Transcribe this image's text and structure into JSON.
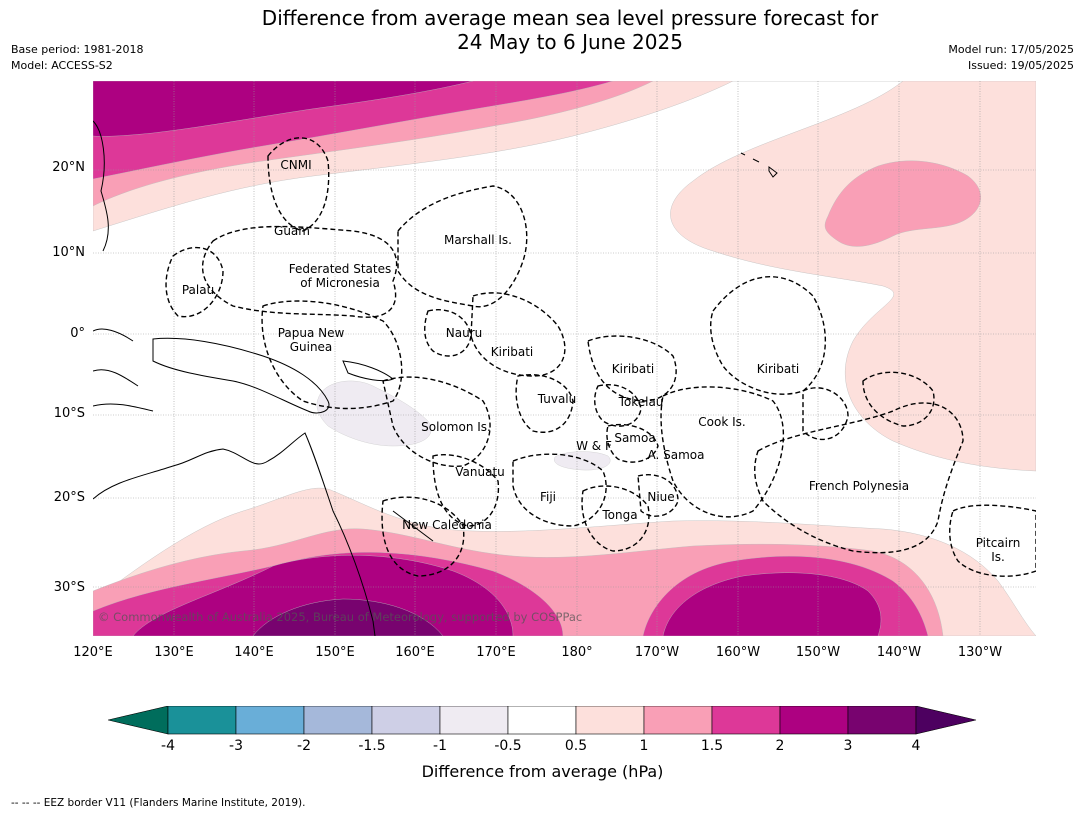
{
  "title_line1": "Difference from average mean sea level pressure forecast for",
  "title_line2": "24 May to 6 June 2025",
  "base_period": "Base period: 1981-2018",
  "model": "Model: ACCESS-S2",
  "model_run": "Model run: 17/05/2025",
  "issued": "Issued: 19/05/2025",
  "lat_labels": [
    "20°N",
    "10°N",
    "0°",
    "10°S",
    "20°S",
    "30°S"
  ],
  "lon_labels": [
    "120°E",
    "130°E",
    "140°E",
    "150°E",
    "160°E",
    "170°E",
    "180°",
    "170°W",
    "160°W",
    "150°W",
    "140°W",
    "130°W"
  ],
  "places": {
    "cnmi": "CNMI",
    "guam": "Guam",
    "marshall": "Marshall Is.",
    "fsm_1": "Federated States",
    "fsm_2": "of Micronesia",
    "palau": "Palau",
    "png_1": "Papua New",
    "png_2": "Guinea",
    "nauru": "Nauru",
    "kiribati_w": "Kiribati",
    "kiribati_c": "Kiribati",
    "kiribati_e": "Kiribati",
    "tuvalu": "Tuvalu",
    "tokelau": "Tokelau",
    "solomon": "Solomon Is.",
    "wf": "W & F",
    "samoa": "Samoa",
    "amsamoa": "A. Samoa",
    "cook": "Cook Is.",
    "vanuatu": "Vanuatu",
    "fiji": "Fiji",
    "niue": "Niue",
    "tonga": "Tonga",
    "frpoly": "French Polynesia",
    "newcal": "New Caledonia",
    "pitcairn_1": "Pitcairn",
    "pitcairn_2": "Is."
  },
  "copyright": "© Commonwealth of Australia 2025, Bureau of Meteorology, supported by COSPPac",
  "colorbar": {
    "ticks": [
      "-4",
      "-3",
      "-2",
      "-1.5",
      "-1",
      "-0.5",
      "0.5",
      "1",
      "1.5",
      "2",
      "3",
      "4"
    ],
    "colors": [
      "#1a9199",
      "#69aed8",
      "#a5b8da",
      "#cecfe6",
      "#efebf2",
      "#ffffff",
      "#fde0dc",
      "#f99fb6",
      "#dd3898",
      "#ad0181",
      "#78036f"
    ],
    "under_color": "#006d5c",
    "over_color": "#4d0060",
    "label": "Difference from average (hPa)"
  },
  "footer": "-- -- -- EEZ border V11 (Flanders Marine Institute, 2019)."
}
